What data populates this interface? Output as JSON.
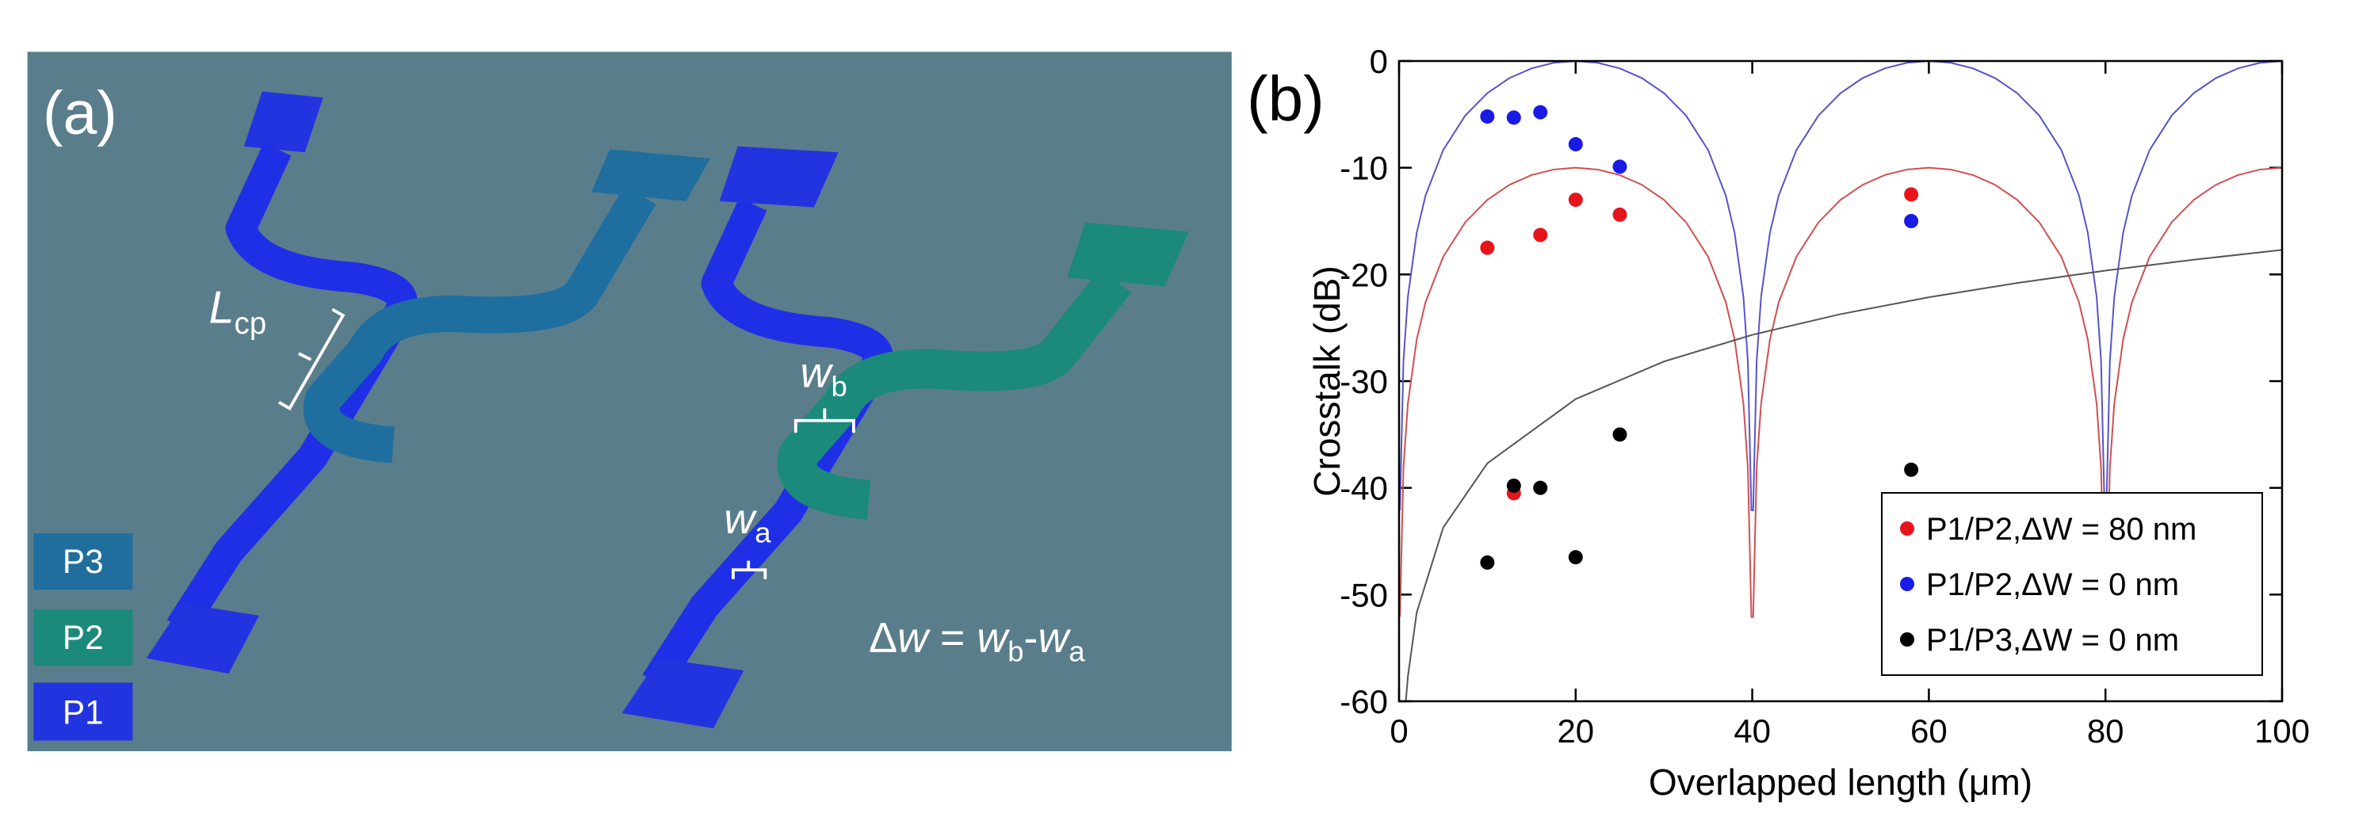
{
  "panel_a": {
    "label": "(a)",
    "coupling_length": {
      "main": "L",
      "sub": "cp"
    },
    "width_b": {
      "main": "w",
      "sub": "b"
    },
    "width_a": {
      "main": "w",
      "sub": "a"
    },
    "equation": [
      "Δ",
      "w",
      " = ",
      "w",
      "b",
      "-",
      "w",
      "a"
    ],
    "ports": [
      "P3",
      "P2",
      "P1"
    ]
  },
  "chart_data": {
    "type": "scatter",
    "panel_label": "(b)",
    "xlabel": "Overlapped length (μm)",
    "ylabel": "Crosstalk (dB)",
    "xlim": [
      0,
      100
    ],
    "xticks": [
      0,
      20,
      40,
      60,
      80,
      100
    ],
    "ylim": [
      -60,
      0
    ],
    "yticks": [
      -60,
      -50,
      -40,
      -30,
      -20,
      -10,
      0
    ],
    "legend": "lower right",
    "series": [
      {
        "name": "P1/P2,ΔW = 80 nm",
        "color": "#e8141c",
        "x": [
          10,
          13,
          16,
          20,
          25,
          58
        ],
        "values": [
          -17.5,
          -40.5,
          -16.3,
          -13,
          -14.4,
          -12.5
        ]
      },
      {
        "name": "P1/P2,ΔW = 0 nm",
        "color": "#1a1ae6",
        "x": [
          10,
          13,
          16,
          20,
          25,
          58
        ],
        "values": [
          -5.2,
          -5.3,
          -4.8,
          -7.8,
          -9.9,
          -15
        ]
      },
      {
        "name": "P1/P3,ΔW = 0 nm",
        "color": "#000000",
        "x": [
          10,
          13,
          16,
          20,
          25,
          58
        ],
        "values": [
          -47,
          -39.8,
          -40,
          -46.5,
          -35,
          -38.3
        ]
      }
    ],
    "curves": [
      {
        "color": "#5555cc",
        "x": [
          0.1,
          0.5,
          1,
          2,
          3,
          5,
          7.5,
          10,
          12.5,
          15,
          17.5,
          20,
          22.5,
          25,
          27.5,
          30,
          32.5,
          35,
          37,
          38,
          39,
          39.5,
          39.9,
          40.1,
          40.5,
          41,
          42,
          43,
          45,
          47.5,
          50,
          52.5,
          55,
          57.5,
          60,
          62.5,
          65,
          67.5,
          70,
          72.5,
          75,
          77,
          78,
          79,
          79.5,
          79.9,
          80.1,
          80.5,
          81,
          82,
          83,
          85,
          87.5,
          90,
          92.5,
          95,
          97.5,
          100
        ],
        "values": [
          -42.1,
          -28.1,
          -22.1,
          -16.1,
          -12.6,
          -8.34,
          -5.11,
          -3.01,
          -1.6,
          -0.69,
          -0.17,
          0,
          -0.17,
          -0.69,
          -1.6,
          -3.01,
          -5.11,
          -8.34,
          -12.6,
          -16.1,
          -22.1,
          -28.1,
          -42.1,
          -42.1,
          -28.1,
          -22.1,
          -16.1,
          -12.6,
          -8.34,
          -5.11,
          -3.01,
          -1.6,
          -0.69,
          -0.17,
          0,
          -0.17,
          -0.69,
          -1.6,
          -3.01,
          -5.11,
          -8.34,
          -12.6,
          -16.1,
          -22.1,
          -28.1,
          -42.1,
          -42.1,
          -28.1,
          -22.1,
          -16.1,
          -12.6,
          -8.34,
          -5.11,
          -3.01,
          -1.6,
          -0.69,
          -0.17,
          0
        ]
      },
      {
        "color": "#d05050",
        "x": [
          0.1,
          0.5,
          1,
          2,
          3,
          5,
          7.5,
          10,
          12.5,
          15,
          17.5,
          20,
          22.5,
          25,
          27.5,
          30,
          32.5,
          35,
          37,
          38,
          39,
          39.5,
          39.9,
          40.1,
          40.5,
          41,
          42,
          43,
          45,
          47.5,
          50,
          52.5,
          55,
          57.5,
          60,
          62.5,
          65,
          67.5,
          70,
          72.5,
          75,
          77,
          78,
          79,
          79.5,
          79.9,
          80.1,
          80.5,
          81,
          82,
          83,
          85,
          87.5,
          90,
          92.5,
          95,
          97.5,
          100
        ],
        "values": [
          -52.1,
          -38.1,
          -32.1,
          -26.1,
          -22.6,
          -18.34,
          -15.11,
          -13.01,
          -11.6,
          -10.69,
          -10.17,
          -10,
          -10.17,
          -10.69,
          -11.6,
          -13.01,
          -15.11,
          -18.34,
          -22.6,
          -26.1,
          -32.1,
          -38.1,
          -52.1,
          -52.1,
          -38.1,
          -32.1,
          -26.1,
          -22.6,
          -18.34,
          -15.11,
          -13.01,
          -11.6,
          -10.69,
          -10.17,
          -10,
          -10.17,
          -10.69,
          -11.6,
          -13.01,
          -15.11,
          -18.34,
          -22.6,
          -26.1,
          -32.1,
          -38.1,
          -52.1,
          -52.1,
          -38.1,
          -32.1,
          -26.1,
          -22.6,
          -18.34,
          -15.11,
          -13.01,
          -11.6,
          -10.69,
          -10.17,
          -10
        ]
      },
      {
        "color": "#555555",
        "x": [
          0.77,
          1,
          2,
          5,
          10,
          20,
          30,
          40,
          50,
          60,
          70,
          80,
          90,
          100
        ],
        "values": [
          -60,
          -57.7,
          -51.68,
          -43.72,
          -37.7,
          -31.68,
          -28.16,
          -25.66,
          -23.72,
          -22.14,
          -20.8,
          -19.64,
          -18.62,
          -17.7
        ]
      }
    ]
  }
}
